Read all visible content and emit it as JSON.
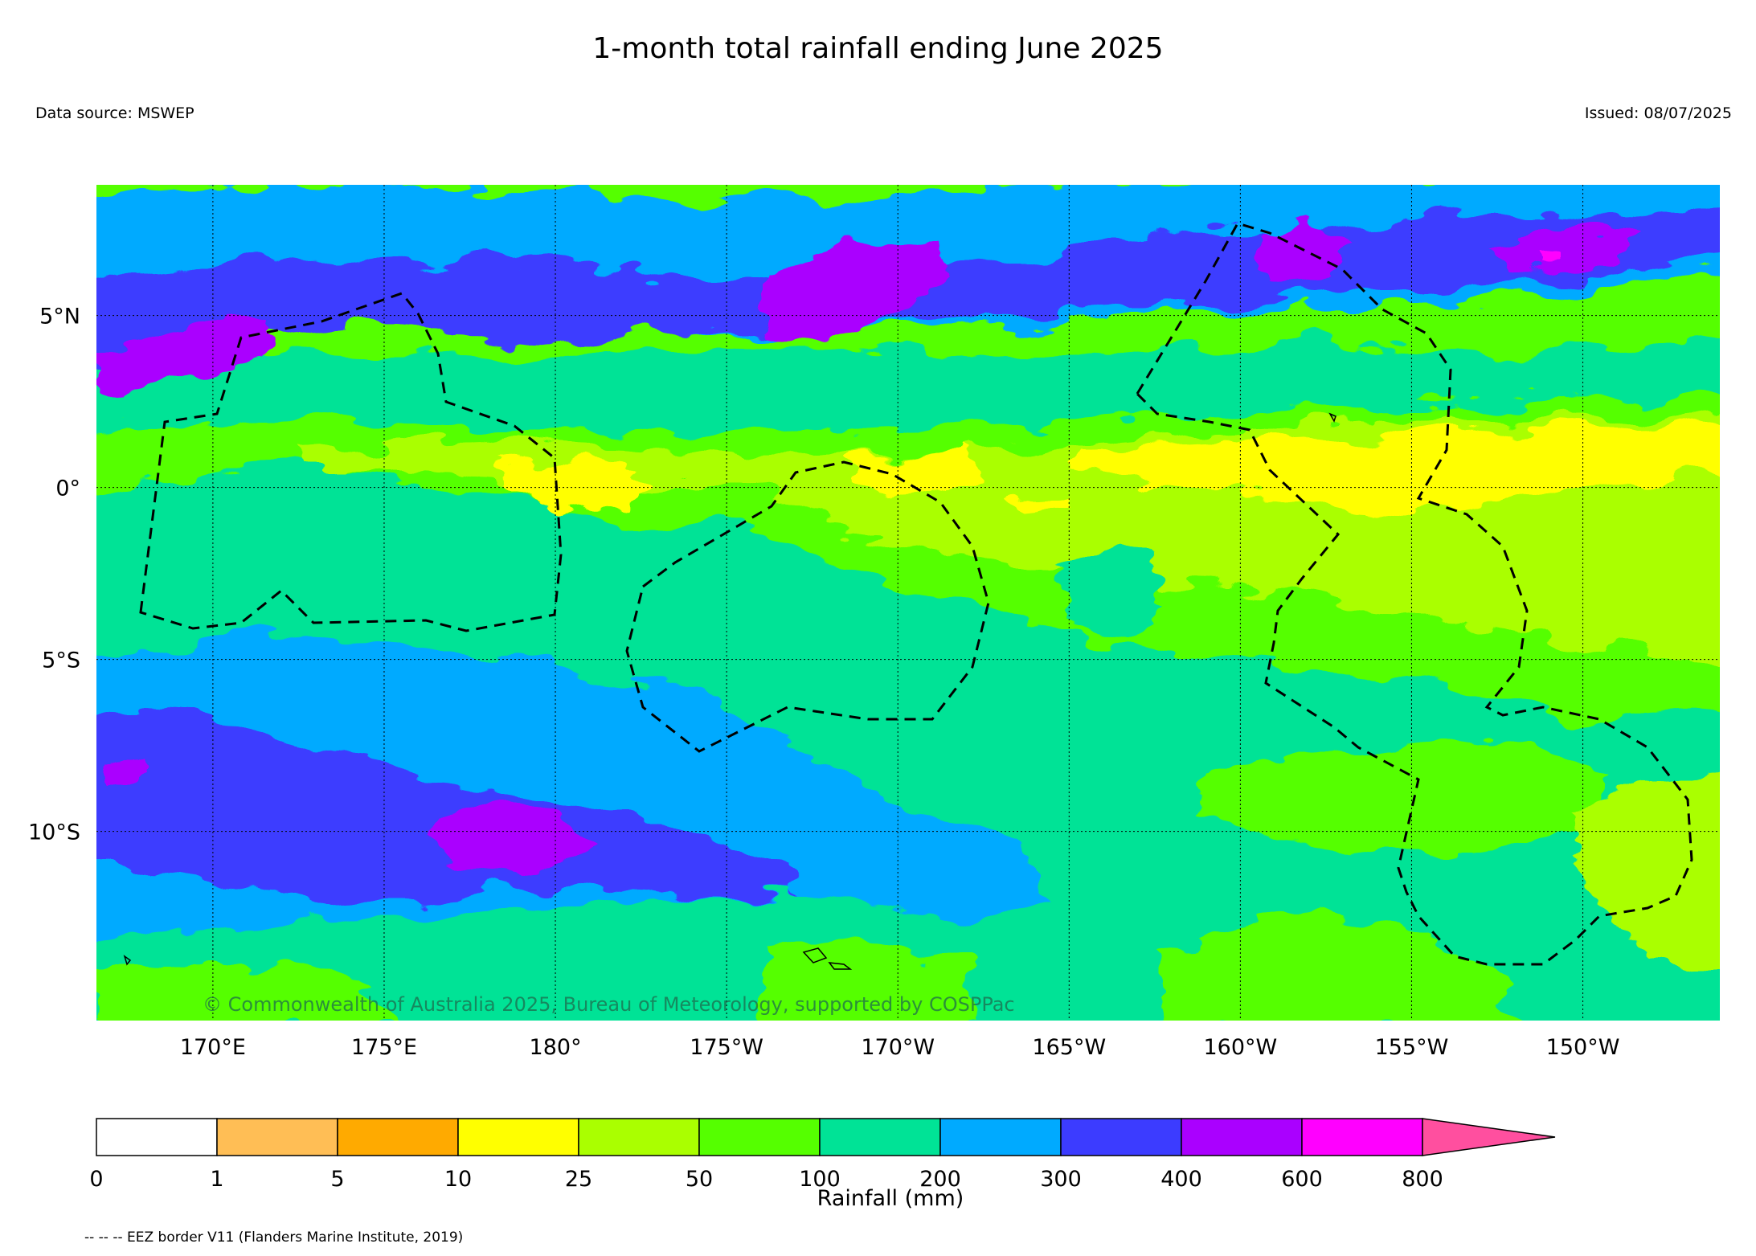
{
  "title": "1-month total rainfall ending June 2025",
  "data_source": "Data source: MSWEP",
  "issued": "Issued: 08/07/2025",
  "copyright": "© Commonwealth of Australia 2025, Bureau of Meteorology, supported by COSPPac",
  "footnote": "-- -- -- EEZ border V11 (Flanders Marine Institute, 2019)",
  "map": {
    "lon_labels": [
      "170°E",
      "175°E",
      "180°",
      "175°W",
      "170°W",
      "165°W",
      "160°W",
      "155°W",
      "150°W"
    ],
    "lat_labels": [
      "5°N",
      "0°",
      "5°S",
      "10°S"
    ],
    "lon_range": [
      166.6,
      -146.0
    ],
    "lat_range": [
      -15.5,
      8.8
    ],
    "gridlines": true
  },
  "legend": {
    "title": "Rainfall (mm)",
    "ticks": [
      "0",
      "1",
      "5",
      "10",
      "25",
      "50",
      "100",
      "200",
      "300",
      "400",
      "600",
      "800"
    ],
    "colors": [
      "#ffffff",
      "#ffbe55",
      "#ffaa00",
      "#ffff00",
      "#aaff00",
      "#55ff00",
      "#00e396",
      "#00aaff",
      "#3c3cff",
      "#aa00ff",
      "#ff00ff",
      "#ff4f9f"
    ]
  }
}
